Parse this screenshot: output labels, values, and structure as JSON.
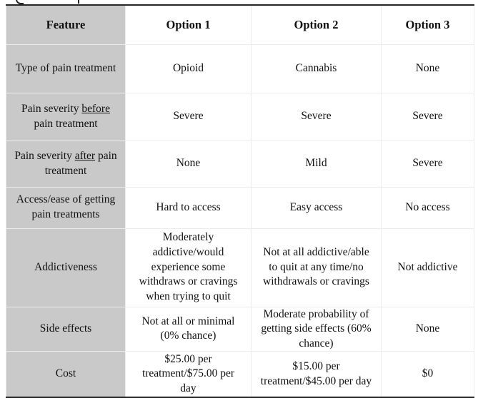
{
  "table": {
    "colors": {
      "feature_column_bg": "#c9c9c9",
      "grid_line": "#ececec",
      "frame_border": "#262626",
      "text": "#111111"
    },
    "columns": [
      {
        "label": "Feature"
      },
      {
        "label": "Option 1"
      },
      {
        "label": "Option 2"
      },
      {
        "label": "Option 3"
      }
    ],
    "rows": [
      {
        "feature": {
          "pre": "Type of pain treatment",
          "underlined": "",
          "post": ""
        },
        "options": [
          "Opioid",
          "Cannabis",
          "None"
        ]
      },
      {
        "feature": {
          "pre": "Pain severity ",
          "underlined": "before",
          "post": " pain treatment"
        },
        "options": [
          "Severe",
          "Severe",
          "Severe"
        ]
      },
      {
        "feature": {
          "pre": "Pain severity ",
          "underlined": "after",
          "post": " pain treatment"
        },
        "options": [
          "None",
          "Mild",
          "Severe"
        ]
      },
      {
        "feature": {
          "pre": "Access/ease of getting pain treatments",
          "underlined": "",
          "post": ""
        },
        "options": [
          "Hard to access",
          "Easy access",
          "No access"
        ]
      },
      {
        "feature": {
          "pre": "Addictiveness",
          "underlined": "",
          "post": ""
        },
        "options": [
          "Moderately addictive/would experience some withdraws or cravings when trying to quit",
          "Not at all addictive/able to quit at any time/no withdrawals or cravings",
          "Not addictive"
        ]
      },
      {
        "feature": {
          "pre": "Side effects",
          "underlined": "",
          "post": ""
        },
        "options": [
          "Not at all or minimal (0% chance)",
          "Moderate probability of getting side effects (60% chance)",
          "None"
        ]
      },
      {
        "feature": {
          "pre": "Cost",
          "underlined": "",
          "post": ""
        },
        "options": [
          "$25.00 per treatment/$75.00 per day",
          "$15.00 per treatment/$45.00 per day",
          "$0"
        ]
      }
    ]
  }
}
